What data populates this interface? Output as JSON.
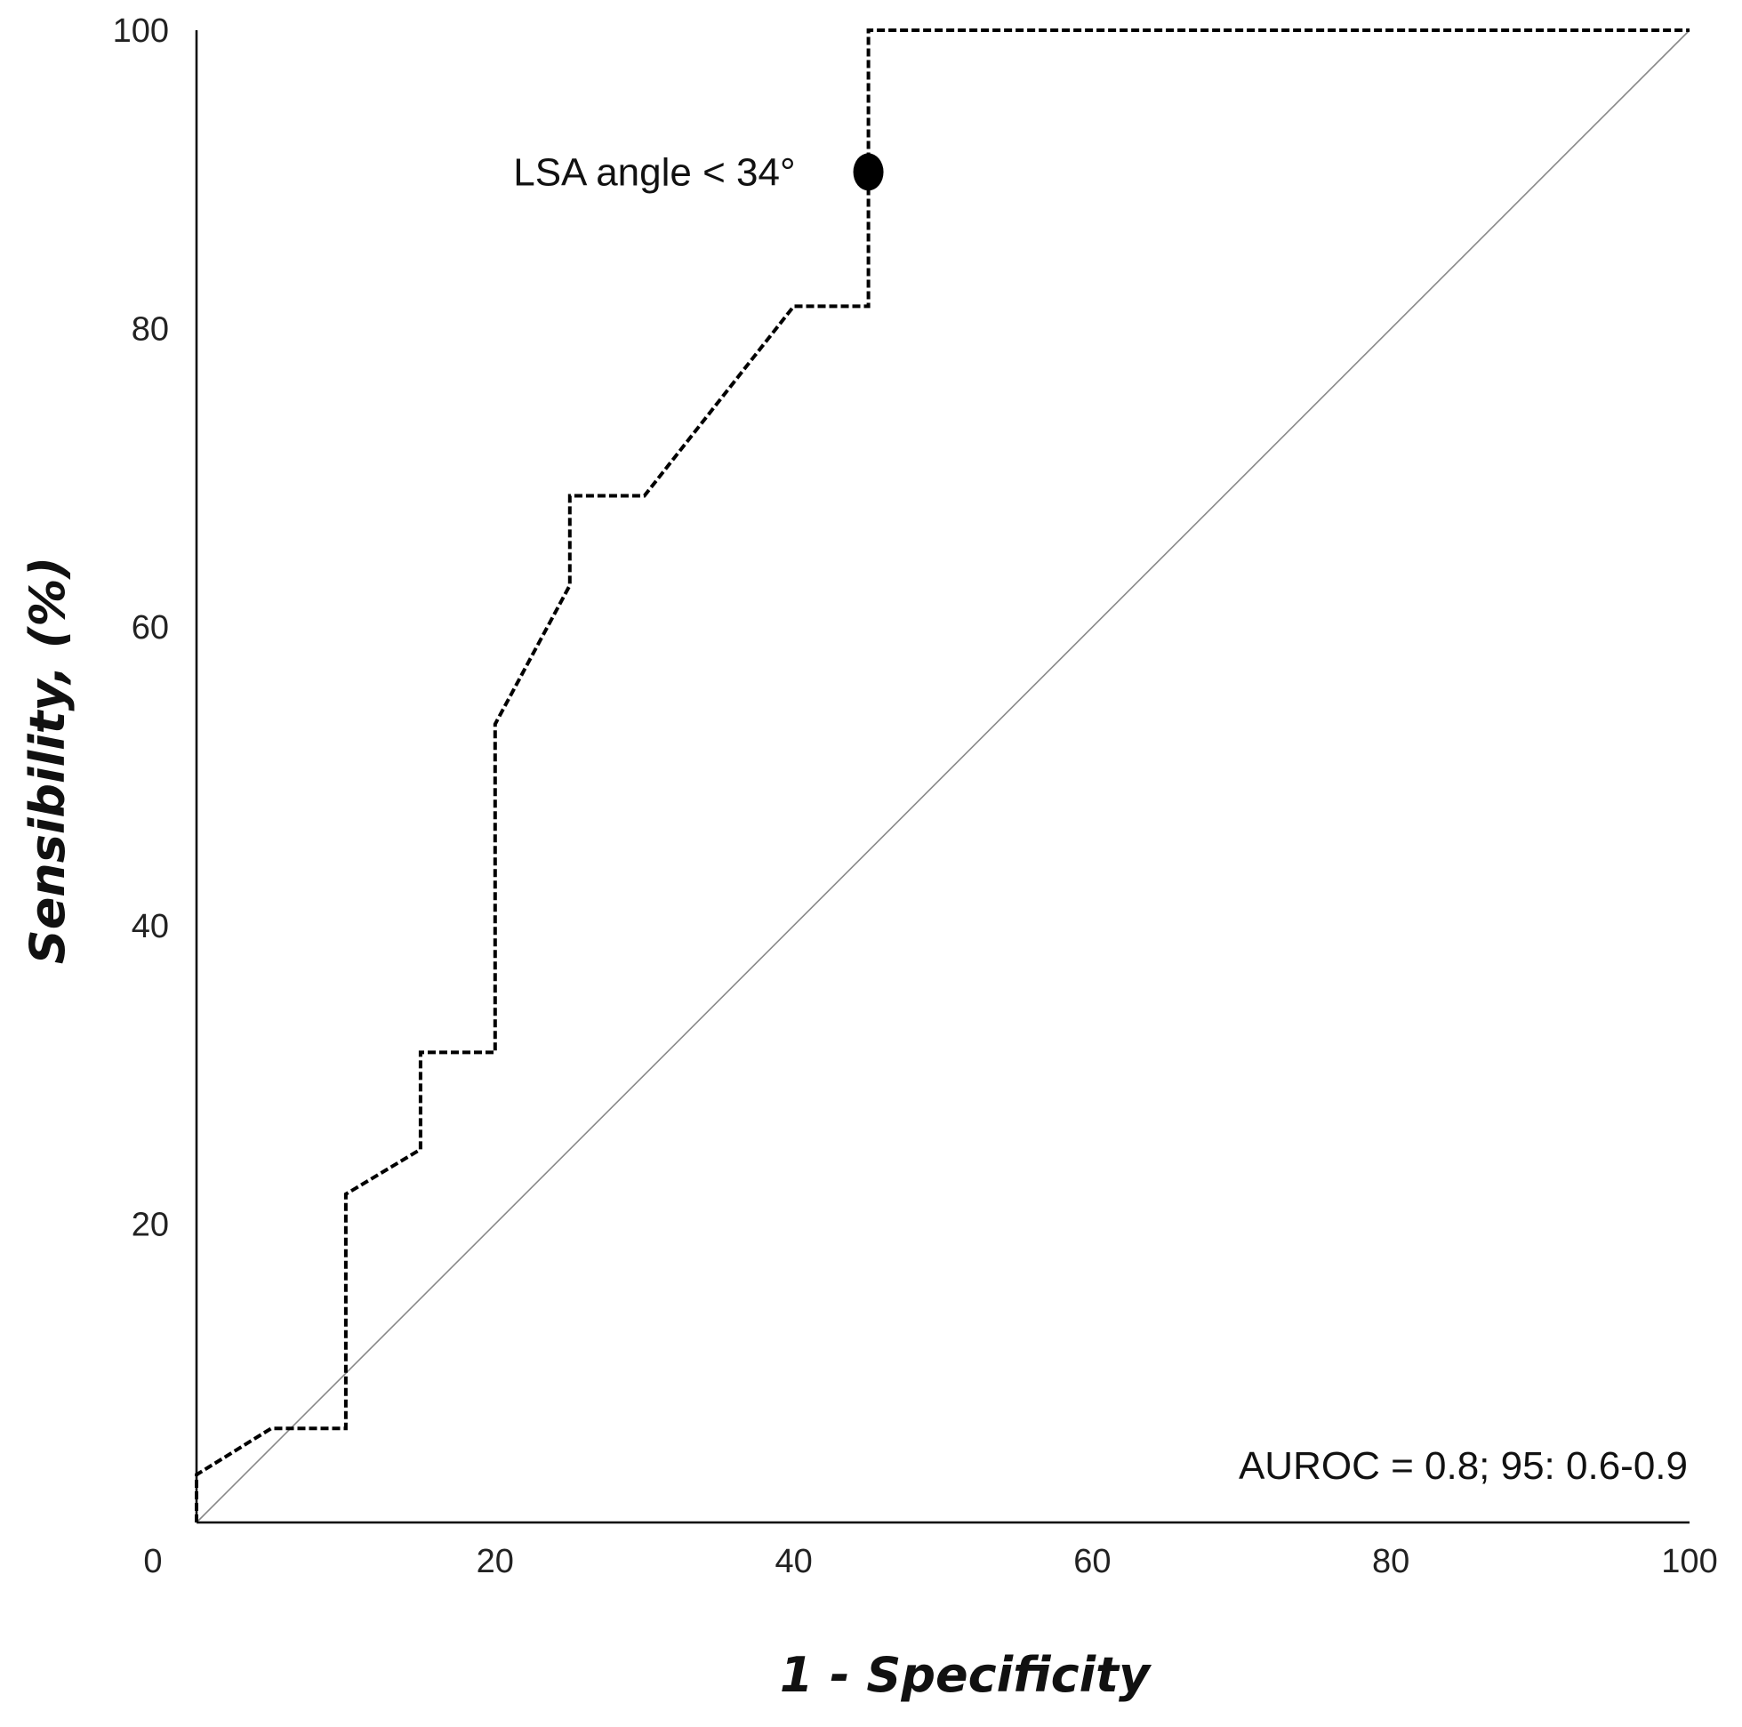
{
  "chart_data": {
    "type": "line",
    "title": "",
    "xlabel": "1 - Specificity",
    "ylabel": "Sensibility, (%)",
    "xlim": [
      0,
      100
    ],
    "ylim": [
      0,
      100
    ],
    "x_ticks": [
      "20",
      "40",
      "60",
      "80",
      "100"
    ],
    "y_ticks": [
      "20",
      "40",
      "60",
      "80",
      "100"
    ],
    "origin_label": "0",
    "grid": false,
    "series": [
      {
        "name": "ROC curve",
        "style": "dashed",
        "color": "#000000",
        "x": [
          0,
          0,
          5,
          10,
          10,
          15,
          15,
          20,
          20,
          25,
          25,
          30,
          40,
          45,
          45,
          45,
          100
        ],
        "y": [
          0,
          3.2,
          6.3,
          6.3,
          22,
          25,
          31.5,
          31.5,
          53.5,
          62.8,
          68.8,
          68.8,
          81.5,
          81.5,
          90.5,
          100,
          100
        ]
      },
      {
        "name": "Reference line",
        "style": "solid",
        "color": "#888888",
        "x": [
          0,
          100
        ],
        "y": [
          0,
          100
        ]
      }
    ],
    "cutoff_point": {
      "x": 45,
      "y": 90.5,
      "label": "LSA angle < 34°"
    },
    "auroc_text": "AUROC = 0.8; 95: 0.6-0.9"
  }
}
